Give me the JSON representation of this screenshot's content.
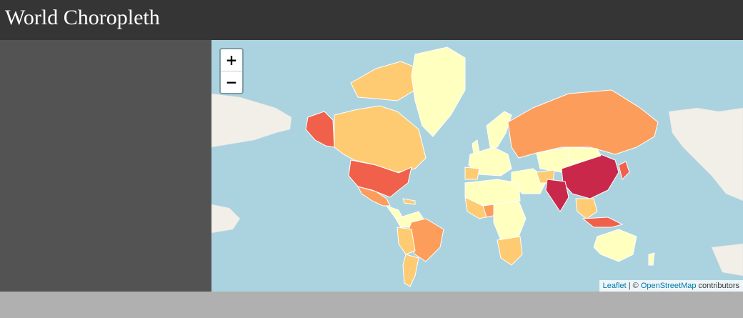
{
  "header": {
    "title": "World Choropleth"
  },
  "map": {
    "zoom_in_label": "+",
    "zoom_out_label": "−",
    "attribution": {
      "leaflet": "Leaflet",
      "separator": " | © ",
      "osm": "OpenStreetMap",
      "suffix": " contributors"
    },
    "colors": {
      "ocean": "#aad3df",
      "land_base": "#f2efe9",
      "c1": "#ffffbf",
      "c2": "#fecb72",
      "c3": "#fc9d5c",
      "c4": "#f0604a",
      "c5": "#c9284a"
    }
  }
}
